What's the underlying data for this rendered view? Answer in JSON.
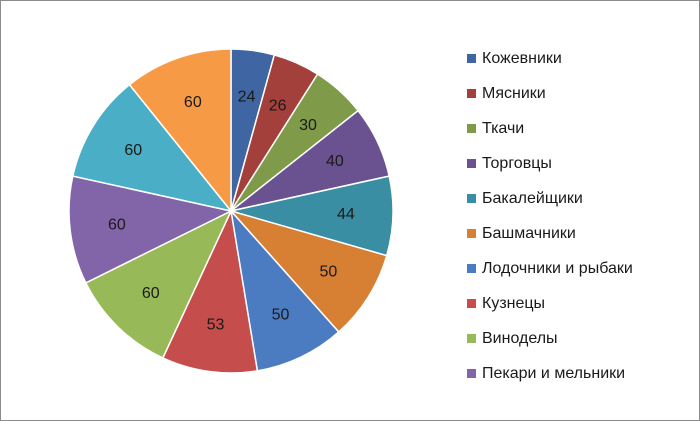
{
  "chart_data": {
    "type": "pie",
    "categories": [
      "Кожевники",
      "Мясники",
      "Ткачи",
      "Торговцы",
      "Бакалейщики",
      "Башмачники",
      "Лодочники и рыбаки",
      "Кузнецы",
      "Виноделы",
      "Пекари и мельники",
      "",
      ""
    ],
    "values": [
      24,
      26,
      30,
      40,
      44,
      50,
      50,
      53,
      60,
      60,
      60,
      60
    ],
    "colors": [
      "#3f66a3",
      "#a4403c",
      "#7f9a48",
      "#6a5290",
      "#3a8ea3",
      "#d77f33",
      "#4b7cc2",
      "#c54d4b",
      "#98b957",
      "#8265a8",
      "#4aaec6",
      "#f79a45"
    ],
    "legend_entries": [
      "Кожевники",
      "Мясники",
      "Ткачи",
      "Торговцы",
      "Бакалейщики",
      "Башмачники",
      "Лодочники и рыбаки",
      "Кузнецы",
      "Виноделы",
      "Пекари и мельники"
    ],
    "legend_placement": "right",
    "start_angle_deg": 0,
    "direction": "clockwise"
  }
}
